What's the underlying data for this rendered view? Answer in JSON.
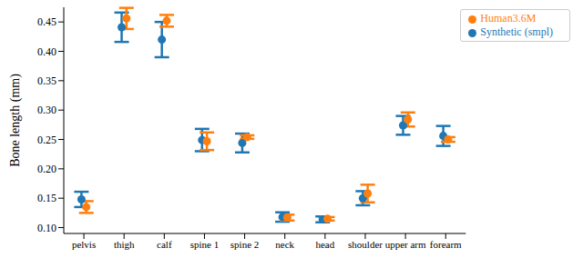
{
  "chart_data": {
    "type": "scatter",
    "y_label": "Bone length (mm)",
    "categories": [
      "pelvis",
      "thigh",
      "calf",
      "spine 1",
      "spine 2",
      "neck",
      "head",
      "shoulder",
      "upper arm",
      "forearm"
    ],
    "series": [
      {
        "name": "Synthetic (smpl)",
        "color": "#1f77b4",
        "marker": "circle",
        "values": [
          0.148,
          0.441,
          0.42,
          0.249,
          0.244,
          0.118,
          0.114,
          0.15,
          0.274,
          0.256
        ],
        "errors": [
          0.013,
          0.025,
          0.03,
          0.019,
          0.016,
          0.008,
          0.005,
          0.012,
          0.016,
          0.017
        ]
      },
      {
        "name": "Human3.6M",
        "color": "#ff7f0e",
        "marker": "circle",
        "values": [
          0.135,
          0.456,
          0.452,
          0.247,
          0.254,
          0.117,
          0.115,
          0.158,
          0.284,
          0.25
        ],
        "errors": [
          0.01,
          0.018,
          0.01,
          0.015,
          0.003,
          0.005,
          0.003,
          0.015,
          0.012,
          0.004
        ]
      }
    ],
    "ylim": [
      0.09,
      0.475
    ],
    "yticks": [
      {
        "value": 0.1,
        "label": "0.10"
      },
      0.15,
      {
        "value": 0.2,
        "label": "0.20"
      },
      0.25,
      {
        "value": 0.3,
        "label": "0.30"
      },
      0.35,
      {
        "value": 0.4,
        "label": "0.40"
      },
      0.45
    ],
    "legend": "upper right",
    "grid": false
  }
}
